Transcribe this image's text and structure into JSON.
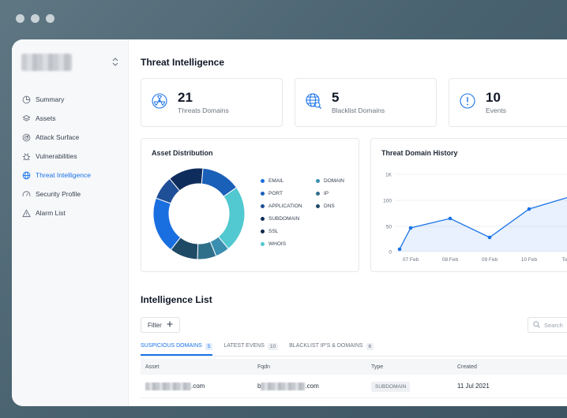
{
  "sidebar": {
    "items": [
      {
        "label": "Summary",
        "icon": "pie-chart-icon",
        "active": false
      },
      {
        "label": "Assets",
        "icon": "stack-icon",
        "active": false
      },
      {
        "label": "Attack Surface",
        "icon": "radar-icon",
        "active": false
      },
      {
        "label": "Vulnerabilities",
        "icon": "bug-icon",
        "active": false
      },
      {
        "label": "Threat Intelligence",
        "icon": "globe-icon",
        "active": true
      },
      {
        "label": "Security Profile",
        "icon": "gauge-icon",
        "active": false
      },
      {
        "label": "Alarm List",
        "icon": "warning-icon",
        "active": false
      }
    ]
  },
  "page": {
    "title": "Threat Intelligence"
  },
  "stats": [
    {
      "value": "21",
      "label": "Threats Domains",
      "icon": "radiation-icon"
    },
    {
      "value": "5",
      "label": "Blacklist Domains",
      "icon": "globe-search-icon"
    },
    {
      "value": "10",
      "label": "Events",
      "icon": "alert-circle-icon"
    }
  ],
  "asset_distribution": {
    "title": "Asset Distribution",
    "legend": [
      {
        "label": "EMAIL",
        "color": "#1a6fe0"
      },
      {
        "label": "DOMAIN",
        "color": "#3a8fb0"
      },
      {
        "label": "PORT",
        "color": "#1a5fb8"
      },
      {
        "label": "IP",
        "color": "#2f6f8a"
      },
      {
        "label": "APPLICATION",
        "color": "#1f4f96"
      },
      {
        "label": "DNS",
        "color": "#1e4a66"
      },
      {
        "label": "SUBDOMAIN",
        "color": "#0f2d5c"
      },
      {
        "label": "SSL",
        "color": "#102a4a"
      },
      {
        "label": "WHOIS",
        "color": "#52c9d0"
      }
    ]
  },
  "chart_data": {
    "type": "line",
    "title": "Threat Domain History",
    "categories": [
      "07 Feb",
      "08 Feb",
      "09 Feb",
      "10 Feb",
      "Today"
    ],
    "yticks": [
      "0",
      "50",
      "100",
      "1K"
    ],
    "series": [
      {
        "values": [
          5,
          50,
          70,
          30,
          90,
          118
        ],
        "x": [
          "07 Feb",
          "07 Feb",
          "08 Feb",
          "09 Feb",
          "10 Feb",
          "Today"
        ]
      }
    ],
    "ylim": [
      0,
      150
    ],
    "color": "#1a73e8"
  },
  "intelligence_list": {
    "title": "Intelligence List",
    "filter_label": "Filter",
    "search_placeholder": "Search",
    "tabs": [
      {
        "label": "SUSPICIOUS DOMAINS",
        "count": "5",
        "active": true
      },
      {
        "label": "LATEST EVENS",
        "count": "10",
        "active": false
      },
      {
        "label": "BLACKLIST IP'S & DOMAINS",
        "count": "6",
        "active": false
      }
    ],
    "columns": [
      "Asset",
      "Fqdn",
      "Type",
      "Created"
    ],
    "rows": [
      {
        "asset_suffix": ".com",
        "fqdn_prefix": "b",
        "fqdn_suffix": ".com",
        "type": "SUBDOMAIN",
        "created": "11 Jul 2021"
      }
    ]
  }
}
